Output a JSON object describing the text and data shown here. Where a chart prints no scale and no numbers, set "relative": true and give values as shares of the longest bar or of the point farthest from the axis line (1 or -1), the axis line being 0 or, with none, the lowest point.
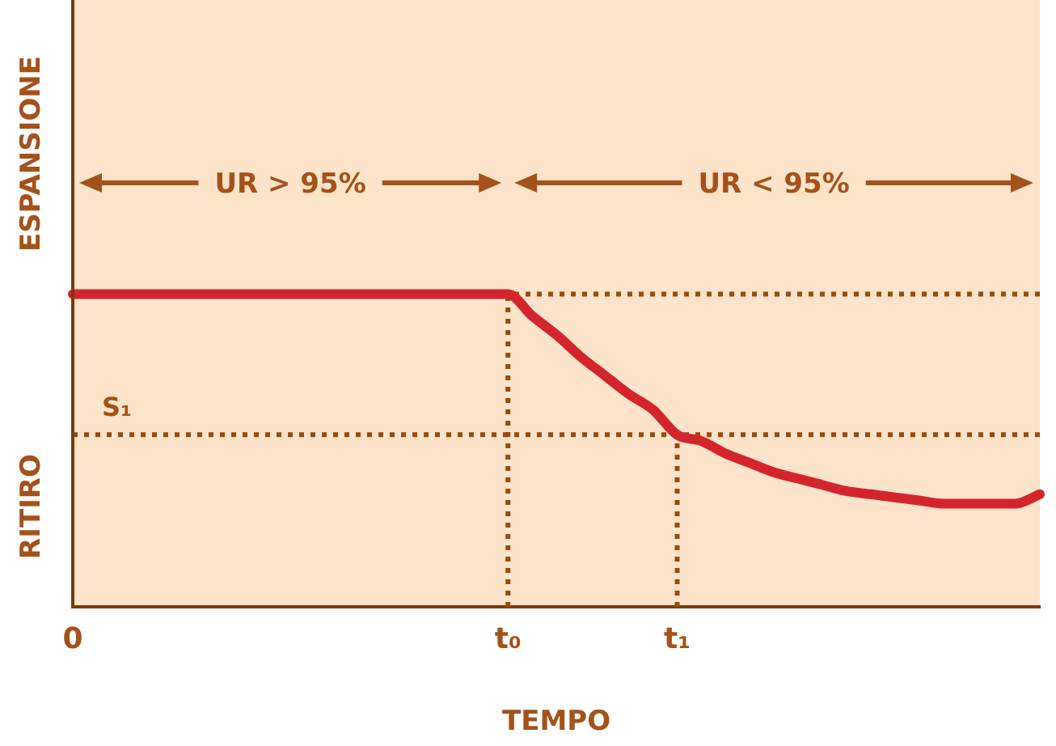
{
  "chart_data": {
    "type": "line",
    "relative": true,
    "xlabel": "TEMPO",
    "annotations": [
      "ESPANSIONE",
      "RITIRO",
      "UR > 95%",
      "UR < 95%"
    ],
    "categories": [
      "0",
      null,
      null,
      null,
      null,
      null,
      null,
      null,
      null,
      null,
      null,
      null,
      null,
      null,
      null,
      null,
      null,
      null,
      "t₀",
      null,
      null,
      null,
      null,
      null,
      null,
      "t₁",
      null,
      null,
      null,
      null,
      null,
      null,
      null,
      null,
      null,
      null,
      null,
      null,
      null,
      null,
      null
    ],
    "series": [
      {
        "color": "#d4252c",
        "values": [
          1,
          1,
          1,
          1,
          1,
          1,
          1,
          1,
          1,
          1,
          1,
          1,
          1,
          1,
          1,
          1,
          1,
          1,
          1,
          0.93,
          0.87,
          0.8,
          0.74,
          0.68,
          0.63,
          0.55,
          0.53,
          0.49,
          0.46,
          0.43,
          0.41,
          0.39,
          0.37,
          0.36,
          0.35,
          0.34,
          0.33,
          0.33,
          0.33,
          0.33,
          0.36
        ]
      }
    ],
    "ref_lines": [
      {
        "axis": "y",
        "value": 1,
        "label": null,
        "color": "#9a4a0a",
        "line_style": "dotted"
      },
      {
        "axis": "y",
        "value": 0.55,
        "label": "S₁",
        "color": "#9a4a0a",
        "line_style": "dotted"
      },
      {
        "axis": "x",
        "value": "t₀",
        "label": null,
        "color": "#9a4a0a",
        "line_style": "dotted"
      },
      {
        "axis": "x",
        "value": "t₁",
        "label": null,
        "color": "#9a4a0a",
        "line_style": "dotted"
      }
    ],
    "grid": false,
    "legend": false,
    "marker": "none",
    "line_style": "solid"
  }
}
